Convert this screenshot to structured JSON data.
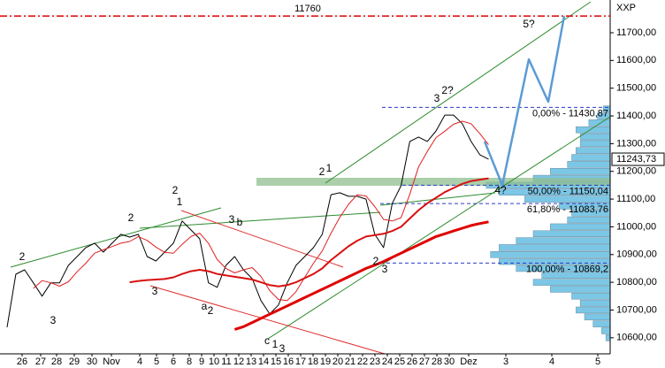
{
  "chart_data": {
    "type": "line",
    "symbol": "XXP",
    "ylim": [
      10542,
      11818
    ],
    "yticks": [
      {
        "value": 10600,
        "label": "10600,00"
      },
      {
        "value": 10700,
        "label": "10700,00"
      },
      {
        "value": 10800,
        "label": "10800,00"
      },
      {
        "value": 10900,
        "label": "10900,00"
      },
      {
        "value": 11000,
        "label": "11000,00"
      },
      {
        "value": 11100,
        "label": "11100,00"
      },
      {
        "value": 11200,
        "label": "11200,00"
      },
      {
        "value": 11300,
        "label": "11300,00"
      },
      {
        "value": 11400,
        "label": "11400,00"
      },
      {
        "value": 11500,
        "label": "11500,00"
      },
      {
        "value": 11600,
        "label": "11600,00"
      },
      {
        "value": 11700,
        "label": "11700,00"
      }
    ],
    "x_labels": [
      "26",
      "27",
      "28",
      "29",
      "30",
      "Nov",
      "4",
      "5",
      "6",
      "8",
      "9",
      "10",
      "11",
      "12",
      "13",
      "14",
      "15",
      "16",
      "17",
      "18",
      "19",
      "20",
      "21",
      "22",
      "23",
      "24",
      "25",
      "26",
      "27",
      "28",
      "30",
      "Dez",
      "3",
      "4",
      "5"
    ],
    "series": [
      {
        "color": "#000000",
        "width": 1,
        "values": [
          10638,
          10829,
          10845,
          10798,
          10750,
          10798,
          10798,
          10861,
          10893,
          10925,
          10941,
          10909,
          10941,
          10973,
          10963,
          10973,
          10893,
          10877,
          10909,
          10941,
          11021,
          10989,
          10957,
          10798,
          10782,
          10861,
          10893,
          10845,
          10813,
          10734,
          10686,
          10718,
          10798,
          10861,
          10893,
          10925,
          10973,
          11116,
          11123,
          11110,
          11110,
          11100,
          10973,
          10925,
          11085,
          11148,
          11308,
          11324,
          11308,
          11346,
          11403,
          11403,
          11372,
          11308,
          11260,
          11244
        ]
      },
      {
        "color": "#e02020",
        "width": 1,
        "values": [
          null,
          null,
          null,
          10778,
          10806,
          10798,
          10786,
          10802,
          10838,
          10869,
          10905,
          10917,
          10929,
          10941,
          10947,
          10965,
          10951,
          10927,
          10908,
          10905,
          10937,
          10965,
          10977,
          10941,
          10882,
          10850,
          10834,
          10845,
          10853,
          10821,
          10770,
          10738,
          10734,
          10766,
          10818,
          10869,
          10913,
          10977,
          11034,
          11081,
          11116,
          11111,
          11073,
          11027,
          11021,
          11033,
          11117,
          11216,
          11272,
          11322,
          11345,
          11370,
          11381,
          11372,
          11336,
          11296
        ]
      },
      {
        "color": "#d81010",
        "width": 2,
        "values": [
          null,
          null,
          null,
          null,
          null,
          null,
          null,
          null,
          null,
          null,
          null,
          null,
          null,
          null,
          10800,
          10805,
          10808,
          10810,
          10812,
          10818,
          10830,
          10840,
          10845,
          10840,
          10830,
          10825,
          10820,
          10815,
          10810,
          10800,
          10790,
          10785,
          10790,
          10800,
          10815,
          10830,
          10850,
          10880,
          10905,
          10930,
          10950,
          10965,
          10970,
          10975,
          10985,
          11000,
          11030,
          11060,
          11085,
          11105,
          11125,
          11140,
          11155,
          11165,
          11170,
          11175
        ]
      },
      {
        "color": "#e00000",
        "width": 3,
        "values": [
          null,
          null,
          null,
          null,
          null,
          null,
          null,
          null,
          null,
          null,
          null,
          null,
          null,
          null,
          null,
          null,
          null,
          null,
          null,
          null,
          null,
          null,
          null,
          null,
          null,
          null,
          10630,
          10640,
          10655,
          10670,
          10685,
          10700,
          10715,
          10730,
          10745,
          10760,
          10775,
          10790,
          10805,
          10820,
          10835,
          10850,
          10862,
          10875,
          10890,
          10905,
          10920,
          10935,
          10950,
          10965,
          10975,
          10985,
          10995,
          11005,
          11012,
          11018
        ]
      }
    ],
    "levels": [
      {
        "value": 11760,
        "label": "11760",
        "color": "#e00000",
        "style": "dashdot"
      },
      {
        "value": 11430.87,
        "label": "0,00% - 11430,87",
        "color": "#2a3cc8",
        "style": "dashed"
      },
      {
        "value": 11150.04,
        "label": "50,00% - 11150,04",
        "color": "#2a3cc8",
        "style": "dashed"
      },
      {
        "value": 11083.76,
        "label": "61,80% - 11083,76",
        "color": "#2a3cc8",
        "style": "dashed"
      },
      {
        "value": 10869.2,
        "label": "100,00% - 10869,2",
        "color": "#2a3cc8",
        "style": "dashed"
      }
    ],
    "last_price": {
      "value": 11243.73,
      "label": "11243,73"
    },
    "projection": {
      "color": "#5b9bd5",
      "values": [
        11308,
        11150,
        11604,
        11451,
        11760
      ]
    },
    "volume_profile": {
      "color": "#7cc6e6",
      "xlim": [
        0,
        150
      ],
      "prices": [
        10600,
        10625,
        10650,
        10675,
        10700,
        10725,
        10750,
        10775,
        10800,
        10825,
        10850,
        10875,
        10900,
        10925,
        10950,
        10975,
        11000,
        11025,
        11050,
        11075,
        11100,
        11125,
        11150,
        11175,
        11200,
        11225,
        11250,
        11275,
        11300,
        11325,
        11350,
        11375,
        11400,
        11425
      ],
      "values": [
        5,
        10,
        20,
        30,
        40,
        35,
        45,
        70,
        90,
        80,
        110,
        130,
        140,
        130,
        110,
        90,
        70,
        50,
        45,
        60,
        100,
        130,
        145,
        90,
        70,
        50,
        45,
        40,
        35,
        35,
        40,
        25,
        15,
        8
      ]
    },
    "wave_labels": [
      {
        "text": "2",
        "color": "#cc00cc"
      },
      {
        "text": "3",
        "color": "#cc00cc"
      },
      {
        "text": "2",
        "color": "#cc00cc"
      },
      {
        "text": "3",
        "color": "#cc00cc"
      },
      {
        "text": "2",
        "color": "#cc00cc"
      },
      {
        "text": "1",
        "color": "#cc00cc"
      },
      {
        "text": "3",
        "color": "#cc00cc"
      },
      {
        "text": "b",
        "color": "#000000"
      },
      {
        "text": "a",
        "color": "#000000"
      },
      {
        "text": "2",
        "color": "#cc00cc"
      },
      {
        "text": "c",
        "color": "#000000"
      },
      {
        "text": "1",
        "color": "#cc00cc"
      },
      {
        "text": "3",
        "color": "#cc00cc"
      },
      {
        "text": "2",
        "color": "#cc00cc"
      },
      {
        "text": "1",
        "color": "#000000"
      },
      {
        "text": "2",
        "color": "#000000"
      },
      {
        "text": "3",
        "color": "#cc00cc"
      },
      {
        "text": "3",
        "color": "#000000"
      },
      {
        "text": "2?",
        "color": "#cc00cc"
      },
      {
        "text": "4?",
        "color": "#000000"
      },
      {
        "text": "5?",
        "color": "#000000"
      }
    ]
  }
}
